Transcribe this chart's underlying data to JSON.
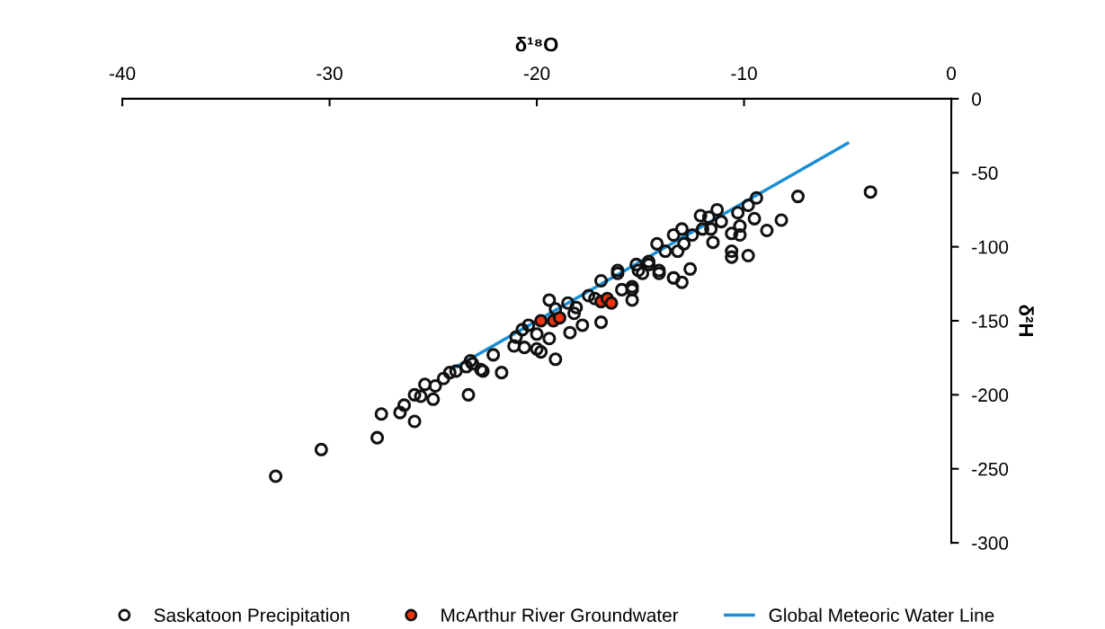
{
  "chart_data": {
    "type": "scatter",
    "xlabel": "δ¹⁸O",
    "ylabel": "δ²H",
    "xlim": [
      -40,
      0
    ],
    "xticks": [
      -40,
      -30,
      -20,
      -10,
      0
    ],
    "ylim": [
      -300,
      0
    ],
    "yticks": [
      0,
      -50,
      -100,
      -150,
      -200,
      -250,
      -300
    ],
    "grid": false,
    "legend": "bottom",
    "series": [
      {
        "name": "Saskatoon Precipitation",
        "color": "#111111",
        "marker": "circle",
        "x": [
          -32.6,
          -30.4,
          -27.7,
          -27.5,
          -25.9,
          -26.6,
          -26.4,
          -25.9,
          -25.6,
          -25.0,
          -25.4,
          -24.9,
          -24.5,
          -24.2,
          -23.9,
          -23.3,
          -23.4,
          -23.1,
          -22.6,
          -22.1,
          -21.7,
          -21.1,
          -20.6,
          -20.0,
          -19.4,
          -18.5,
          -19.1,
          -20.4,
          -21.0,
          -19.8,
          -19.1,
          -19.4,
          -18.4,
          -17.8,
          -16.9,
          -18.2,
          -17.5,
          -16.9,
          -16.1,
          -15.4,
          -15.4,
          -14.6,
          -14.1,
          -13.4,
          -7.4,
          -8.2,
          -8.9,
          -9.4,
          -9.8,
          -9.5,
          -10.2,
          -10.6,
          -10.2,
          -10.6,
          -10.6,
          -9.8,
          -11.3,
          -12.1,
          -11.7,
          -11.6,
          -11.5,
          -12.0,
          -12.5,
          -13.0,
          -13.4,
          -14.2,
          -13.8,
          -13.2,
          -12.6,
          -13.4,
          -13.0,
          -14.1,
          -14.6,
          -15.2,
          -14.9,
          -16.1,
          -15.4,
          -3.9,
          -23.2,
          -22.7,
          -18.1,
          -17.2,
          -15.9,
          -15.1,
          -12.9,
          -11.1,
          -10.3,
          -20.7,
          -20.0
        ],
        "values": [
          -255,
          -237,
          -229,
          -213,
          -218,
          -212,
          -207,
          -200,
          -201,
          -203,
          -193,
          -194,
          -189,
          -185,
          -184,
          -200,
          -181,
          -179,
          -184,
          -173,
          -185,
          -167,
          -168,
          -169,
          -136,
          -138,
          -142,
          -153,
          -161,
          -171,
          -176,
          -162,
          -158,
          -153,
          -151,
          -145,
          -133,
          -123,
          -118,
          -127,
          -136,
          -112,
          -118,
          -121,
          -66,
          -82,
          -89,
          -67,
          -72,
          -81,
          -86,
          -91,
          -92,
          -103,
          -107,
          -106,
          -75,
          -79,
          -80,
          -88,
          -97,
          -88,
          -92,
          -88,
          -92,
          -98,
          -103,
          -103,
          -115,
          -121,
          -124,
          -116,
          -110,
          -112,
          -118,
          -116,
          -129,
          -63,
          -177,
          -183,
          -141,
          -135,
          -129,
          -116,
          -98,
          -83,
          -77,
          -156,
          -159
        ]
      },
      {
        "name": "McArthur River Groundwater",
        "color": "#ee3311",
        "marker": "circle",
        "x": [
          -19.8,
          -19.2,
          -18.9,
          -16.9,
          -16.6,
          -16.4
        ],
        "values": [
          -150,
          -150,
          -148,
          -137,
          -135,
          -138
        ]
      },
      {
        "name": "Global Meteoric Water Line",
        "type": "line",
        "color": "#1a8fd6",
        "line_style": "solid",
        "marker": "none",
        "x": [
          -24,
          -5
        ],
        "values": [
          -182,
          -30
        ]
      }
    ]
  }
}
